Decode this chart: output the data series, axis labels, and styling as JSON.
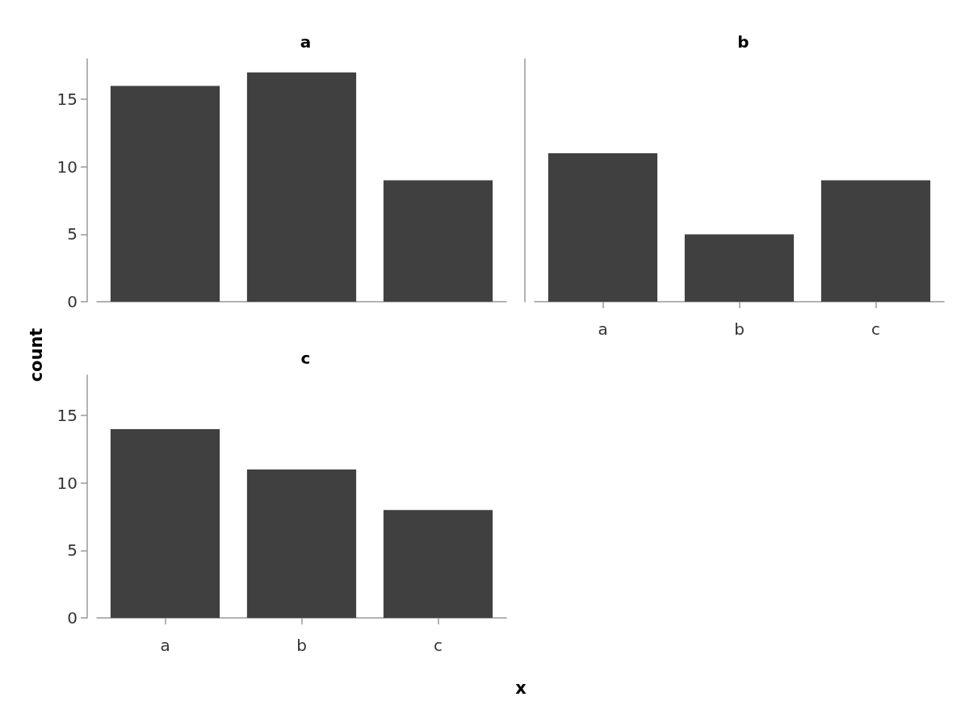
{
  "chart_data": [
    {
      "type": "bar",
      "title": "a",
      "categories": [
        null,
        null,
        null
      ],
      "values": [
        16,
        17,
        9
      ],
      "color": "#404040",
      "ylim": [
        0,
        18
      ],
      "yticks": [
        0,
        5,
        10,
        15
      ],
      "grid": false,
      "tick_labels": "y"
    },
    {
      "type": "bar",
      "title": "b",
      "categories": [
        "a",
        "b",
        "c"
      ],
      "values": [
        11,
        5,
        9
      ],
      "color": "#404040",
      "ylim": [
        0,
        18
      ],
      "yticks": [
        0,
        5,
        10,
        15
      ],
      "grid": false,
      "tick_labels": "x"
    },
    {
      "type": "bar",
      "title": "c",
      "categories": [
        "a",
        "b",
        "c"
      ],
      "values": [
        14,
        11,
        8
      ],
      "color": "#404040",
      "ylim": [
        0,
        18
      ],
      "yticks": [
        0,
        5,
        10,
        15
      ],
      "grid": false,
      "xlabel": "x",
      "ylabel": "count"
    }
  ]
}
